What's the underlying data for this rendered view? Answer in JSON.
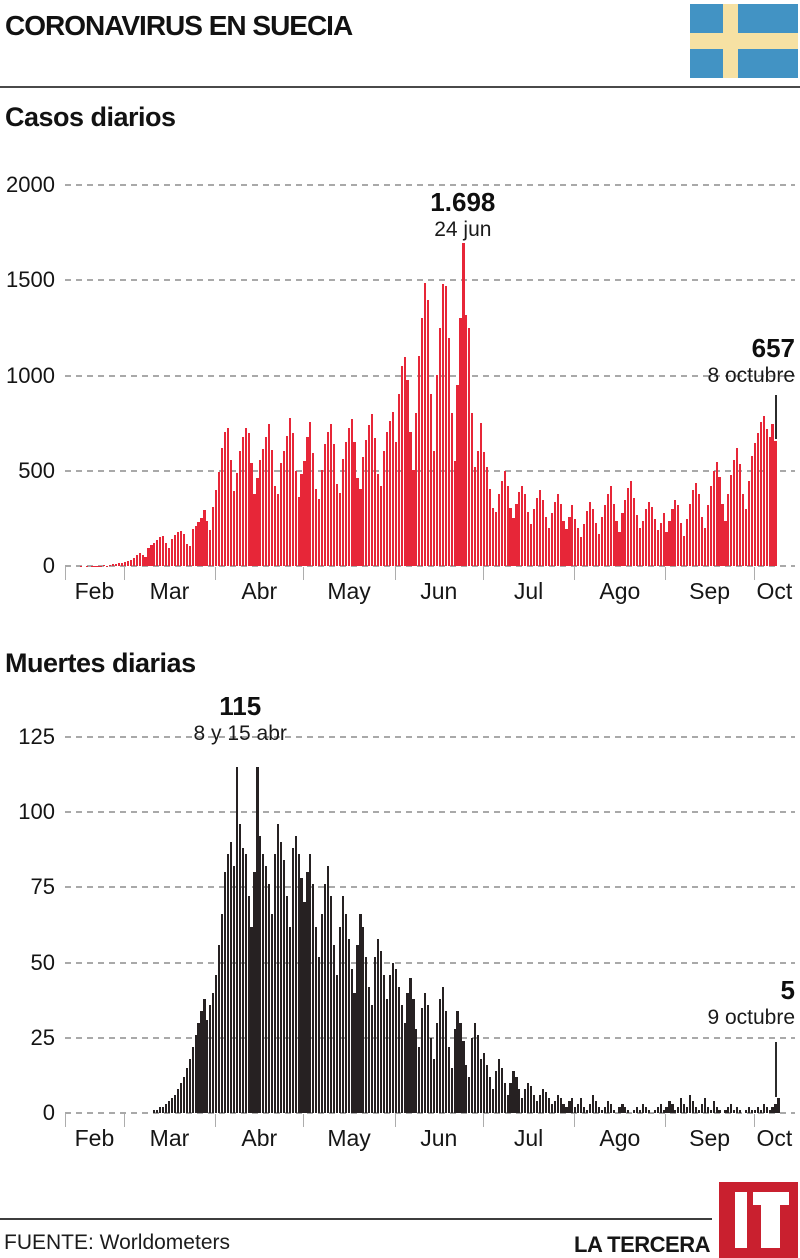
{
  "header": {
    "title": "CORONAVIRUS EN SUECIA"
  },
  "flag": {
    "name": "sweden-flag",
    "blue": "#4293c4",
    "yellow": "#f6e1a3"
  },
  "footer": {
    "source": "FUENTE: Worldometers",
    "brand": "LA TERCERA",
    "logo_text": "LT",
    "logo_color": "#c9202f"
  },
  "chart_data": [
    {
      "id": "cases",
      "type": "bar",
      "title": "Casos diarios",
      "color": "#e72638",
      "ylim": [
        0,
        2000
      ],
      "yticks": [
        0,
        500,
        1000,
        1500,
        2000
      ],
      "grid": true,
      "pad_slots": 6,
      "months": [
        {
          "label": "Feb",
          "start": 0
        },
        {
          "label": "Mar",
          "start": 20
        },
        {
          "label": "Abr",
          "start": 51
        },
        {
          "label": "May",
          "start": 81
        },
        {
          "label": "Jun",
          "start": 112
        },
        {
          "label": "Jul",
          "start": 142
        },
        {
          "label": "Ago",
          "start": 173
        },
        {
          "label": "Sep",
          "start": 204
        },
        {
          "label": "Oct",
          "start": 234
        }
      ],
      "peak_annotation": {
        "value": "1.698",
        "date": "24 jun"
      },
      "last_annotation": {
        "value": "657",
        "date": "8 octubre"
      },
      "values": [
        0,
        0,
        0,
        0,
        0,
        1,
        0,
        1,
        0,
        1,
        2,
        1,
        2,
        3,
        2,
        5,
        8,
        10,
        14,
        18,
        22,
        28,
        34,
        44,
        56,
        70,
        60,
        46,
        92,
        110,
        122,
        136,
        150,
        158,
        120,
        96,
        142,
        162,
        176,
        186,
        166,
        116,
        106,
        192,
        212,
        232,
        252,
        296,
        238,
        188,
        308,
        400,
        496,
        620,
        702,
        726,
        558,
        396,
        488,
        602,
        678,
        722,
        696,
        540,
        380,
        462,
        558,
        612,
        678,
        748,
        608,
        420,
        378,
        542,
        606,
        682,
        776,
        698,
        498,
        362,
        482,
        552,
        678,
        758,
        592,
        402,
        352,
        502,
        642,
        702,
        748,
        642,
        432,
        382,
        562,
        652,
        722,
        772,
        652,
        462,
        402,
        572,
        662,
        742,
        798,
        672,
        482,
        422,
        602,
        702,
        762,
        808,
        652,
        902,
        1052,
        1098,
        978,
        702,
        502,
        802,
        1102,
        1302,
        1487,
        1398,
        902,
        602,
        1002,
        1252,
        1478,
        1468,
        1198,
        802,
        552,
        952,
        1302,
        1698,
        1318,
        1248,
        802,
        522,
        602,
        752,
        598,
        518,
        402,
        302,
        282,
        378,
        448,
        498,
        418,
        302,
        252,
        328,
        388,
        418,
        378,
        282,
        222,
        298,
        358,
        398,
        348,
        258,
        202,
        278,
        338,
        378,
        328,
        238,
        192,
        258,
        318,
        248,
        198,
        152,
        218,
        288,
        338,
        298,
        228,
        168,
        258,
        318,
        378,
        418,
        328,
        238,
        178,
        278,
        348,
        408,
        448,
        358,
        268,
        198,
        238,
        298,
        338,
        308,
        248,
        188,
        228,
        278,
        178,
        238,
        298,
        348,
        318,
        228,
        158,
        248,
        328,
        398,
        438,
        378,
        258,
        198,
        318,
        418,
        498,
        548,
        468,
        328,
        238,
        378,
        478,
        558,
        618,
        538,
        378,
        298,
        448,
        578,
        648,
        698,
        758,
        788,
        718,
        678,
        748,
        657
      ]
    },
    {
      "id": "deaths",
      "type": "bar",
      "title": "Muertes diarias",
      "color": "#262122",
      "ylim": [
        0,
        125
      ],
      "yticks": [
        0,
        25,
        50,
        75,
        100,
        125
      ],
      "grid": true,
      "pad_slots": 5,
      "months": [
        {
          "label": "Feb",
          "start": 0
        },
        {
          "label": "Mar",
          "start": 20
        },
        {
          "label": "Abr",
          "start": 51
        },
        {
          "label": "May",
          "start": 81
        },
        {
          "label": "Jun",
          "start": 112
        },
        {
          "label": "Jul",
          "start": 142
        },
        {
          "label": "Ago",
          "start": 173
        },
        {
          "label": "Sep",
          "start": 204
        },
        {
          "label": "Oct",
          "start": 234
        }
      ],
      "peak_annotation": {
        "value": "115",
        "date": "8 y 15 abr"
      },
      "last_annotation": {
        "value": "5",
        "date": "9 octubre"
      },
      "values": [
        0,
        0,
        0,
        0,
        0,
        0,
        0,
        0,
        0,
        0,
        0,
        0,
        0,
        0,
        0,
        0,
        0,
        0,
        0,
        0,
        0,
        0,
        0,
        0,
        0,
        0,
        0,
        0,
        0,
        0,
        1,
        1,
        2,
        2,
        3,
        4,
        5,
        6,
        8,
        10,
        12,
        15,
        18,
        22,
        26,
        30,
        34,
        38,
        31,
        36,
        40,
        46,
        56,
        66,
        80,
        86,
        90,
        82,
        115,
        96,
        88,
        86,
        72,
        62,
        80,
        115,
        92,
        86,
        82,
        76,
        66,
        86,
        96,
        90,
        84,
        72,
        62,
        88,
        92,
        86,
        78,
        70,
        80,
        86,
        76,
        62,
        52,
        66,
        76,
        82,
        72,
        56,
        46,
        62,
        72,
        66,
        58,
        48,
        40,
        56,
        66,
        62,
        52,
        42,
        36,
        52,
        58,
        54,
        46,
        38,
        46,
        50,
        48,
        42,
        36,
        30,
        40,
        45,
        38,
        28,
        22,
        35,
        40,
        36,
        25,
        18,
        30,
        38,
        42,
        34,
        22,
        15,
        28,
        34,
        30,
        24,
        16,
        12,
        25,
        30,
        26,
        18,
        20,
        16,
        12,
        8,
        14,
        18,
        15,
        10,
        6,
        10,
        14,
        12,
        8,
        5,
        8,
        10,
        9,
        6,
        4,
        6,
        8,
        7,
        5,
        3,
        4,
        6,
        5,
        3,
        2,
        4,
        5,
        2,
        3,
        5,
        2,
        1,
        3,
        6,
        4,
        2,
        1,
        2,
        4,
        3,
        1,
        0,
        2,
        3,
        2,
        1,
        0,
        1,
        2,
        1,
        3,
        2,
        1,
        0,
        1,
        2,
        3,
        1,
        2,
        4,
        3,
        1,
        2,
        5,
        3,
        2,
        6,
        4,
        2,
        1,
        3,
        5,
        2,
        1,
        4,
        2,
        1,
        0,
        1,
        2,
        3,
        1,
        2,
        1,
        0,
        1,
        2,
        1,
        1,
        2,
        1,
        3,
        2,
        1,
        2,
        3,
        5
      ]
    }
  ]
}
